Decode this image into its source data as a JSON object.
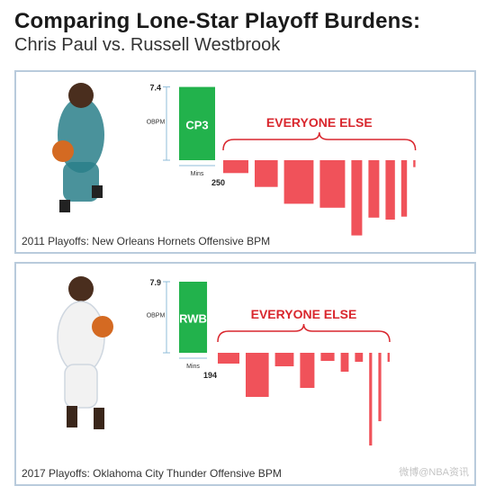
{
  "header": {
    "title": "Comparing Lone-Star Playoff Burdens:",
    "subtitle": "Chris Paul vs. Russell Westbrook"
  },
  "watermark": "微博@NBA资讯",
  "colors": {
    "star": "#22b24c",
    "others": "#f0525a",
    "everyone_else_label": "#d9272e",
    "axis_marker": "#8fbcd9",
    "panel_border": "#b9cbdc"
  },
  "chart_data": [
    {
      "type": "bar",
      "title": "",
      "caption": "2011 Playoffs: New Orleans Hornets Offensive BPM",
      "ylabel": "OBPM",
      "xlabel": "Mins",
      "group_label": "EVERYONE ELSE",
      "star": {
        "label": "CP3",
        "obpm": 7.4,
        "mins": 250
      },
      "others": [
        {
          "obpm": -1.3,
          "mins": 175
        },
        {
          "obpm": -2.7,
          "mins": 160
        },
        {
          "obpm": -4.4,
          "mins": 205
        },
        {
          "obpm": -4.8,
          "mins": 175
        },
        {
          "obpm": -7.6,
          "mins": 75
        },
        {
          "obpm": -5.8,
          "mins": 75
        },
        {
          "obpm": -6.0,
          "mins": 65
        },
        {
          "obpm": -5.7,
          "mins": 40
        },
        {
          "obpm": -0.7,
          "mins": 15
        }
      ]
    },
    {
      "type": "bar",
      "title": "",
      "caption": "2017 Playoffs: Oklahoma City Thunder Offensive BPM",
      "ylabel": "OBPM",
      "xlabel": "Mins",
      "group_label": "EVERYONE ELSE",
      "star": {
        "label": "RWB",
        "obpm": 7.9,
        "mins": 194
      },
      "others": [
        {
          "obpm": -1.2,
          "mins": 150
        },
        {
          "obpm": -4.9,
          "mins": 160
        },
        {
          "obpm": -1.5,
          "mins": 130
        },
        {
          "obpm": -3.9,
          "mins": 100
        },
        {
          "obpm": -0.9,
          "mins": 95
        },
        {
          "obpm": -2.1,
          "mins": 55
        },
        {
          "obpm": -1.0,
          "mins": 55
        },
        {
          "obpm": -10.3,
          "mins": 20
        },
        {
          "obpm": -7.6,
          "mins": 20
        },
        {
          "obpm": -1.0,
          "mins": 15
        }
      ]
    }
  ]
}
